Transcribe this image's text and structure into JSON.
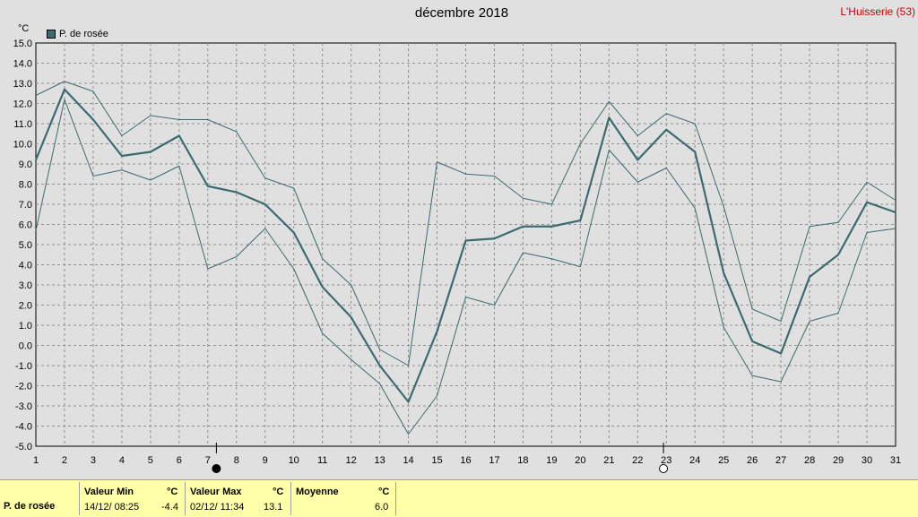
{
  "header": {
    "title": "décembre 2018",
    "station": "L'Huisserie (53)",
    "unit": "°C"
  },
  "colors": {
    "series": "#3b6b6e",
    "grid": "#909090",
    "background": "#e0e0e0",
    "stats_background": "#ffffa8",
    "station_text": "#cc0000"
  },
  "chart_data": {
    "type": "line",
    "title": "décembre 2018",
    "ylabel": "°C",
    "xlabel": "",
    "ylim": [
      -5,
      15
    ],
    "xlim": [
      1,
      31
    ],
    "grid": true,
    "legend_position": "top-left",
    "x": [
      1,
      2,
      3,
      4,
      5,
      6,
      7,
      8,
      9,
      10,
      11,
      12,
      13,
      14,
      15,
      16,
      17,
      18,
      19,
      20,
      21,
      22,
      23,
      24,
      25,
      26,
      27,
      28,
      29,
      30,
      31
    ],
    "x_tick_labels": [
      "1",
      "2",
      "3",
      "4",
      "5",
      "6",
      "7",
      "8",
      "9",
      "10",
      "11",
      "12",
      "13",
      "14",
      "15",
      "16",
      "17",
      "18",
      "19",
      "20",
      "21",
      "22",
      "23",
      "24",
      "25",
      "26",
      "27",
      "28",
      "29",
      "30",
      "31"
    ],
    "y_tick_labels": [
      "15.0",
      "14.0",
      "13.0",
      "12.0",
      "11.0",
      "10.0",
      "9.0",
      "8.0",
      "7.0",
      "6.0",
      "5.0",
      "4.0",
      "3.0",
      "2.0",
      "1.0",
      "0.0",
      "-1.0",
      "-2.0",
      "-3.0",
      "-4.0",
      "-5.0"
    ],
    "series": [
      {
        "name": "P. de rosée",
        "role": "mean",
        "values": [
          9.2,
          12.7,
          11.2,
          9.4,
          9.6,
          10.4,
          7.9,
          7.6,
          7.0,
          5.6,
          2.9,
          1.4,
          -1.0,
          -2.8,
          0.7,
          5.2,
          5.3,
          5.9,
          5.9,
          6.2,
          11.3,
          9.2,
          10.7,
          9.6,
          3.6,
          0.2,
          -0.4,
          3.4,
          4.5,
          7.1,
          6.6
        ]
      },
      {
        "role": "max",
        "values": [
          12.4,
          13.1,
          12.6,
          10.4,
          11.4,
          11.2,
          11.2,
          10.6,
          8.3,
          7.8,
          4.3,
          3.0,
          -0.2,
          -1.0,
          9.1,
          8.5,
          8.4,
          7.3,
          7.0,
          10.0,
          12.1,
          10.4,
          11.5,
          11.0,
          6.9,
          1.8,
          1.2,
          5.9,
          6.1,
          8.1,
          7.2
        ]
      },
      {
        "role": "min",
        "values": [
          5.7,
          12.2,
          8.4,
          8.7,
          8.2,
          8.9,
          3.8,
          4.4,
          5.8,
          3.8,
          0.6,
          -0.7,
          -1.9,
          -4.4,
          -2.5,
          2.4,
          2.0,
          4.6,
          4.3,
          3.9,
          9.7,
          8.1,
          8.8,
          6.8,
          0.9,
          -1.5,
          -1.8,
          1.2,
          1.6,
          5.6,
          5.8
        ]
      }
    ],
    "moon_markers": [
      {
        "x": 7.3,
        "phase": "new-moon"
      },
      {
        "x": 22.9,
        "phase": "full-moon"
      }
    ]
  },
  "stats": {
    "row_label": "P. de rosée",
    "min": {
      "header": "Valeur Min",
      "unit": "°C",
      "date": "14/12/  08:25",
      "value": "-4.4"
    },
    "max": {
      "header": "Valeur Max",
      "unit": "°C",
      "date": "02/12/  11:34",
      "value": "13.1"
    },
    "mean": {
      "header": "Moyenne",
      "unit": "°C",
      "value": "6.0"
    }
  }
}
